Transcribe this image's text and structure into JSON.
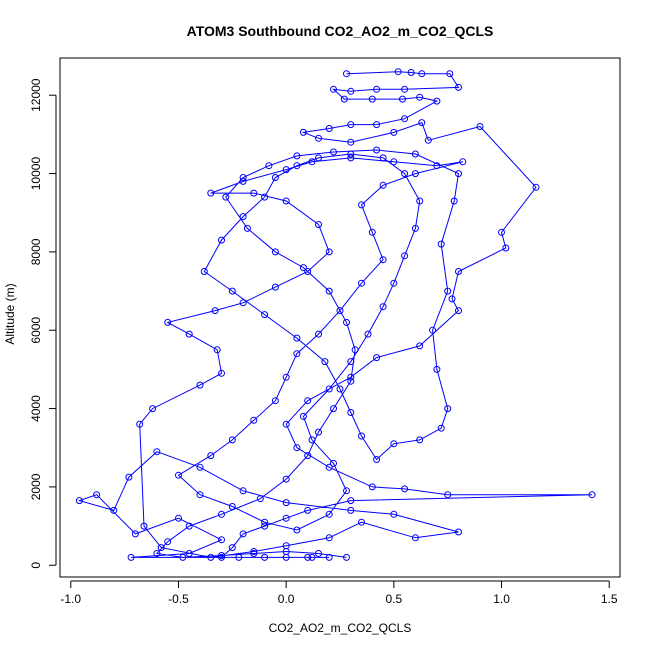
{
  "chart_data": {
    "type": "scatter",
    "title": "ATOM3 Southbound CO2_AO2_m_CO2_QCLS",
    "xlabel": "CO2_AO2_m_CO2_QCLS",
    "ylabel": "Altitude (m)",
    "xlim": [
      -1.05,
      1.55
    ],
    "ylim": [
      -300,
      12950
    ],
    "xticks": [
      -1.0,
      -0.5,
      0.0,
      0.5,
      1.0,
      1.5
    ],
    "xtick_labels": [
      "-1.0",
      "-0.5",
      "0.0",
      "0.5",
      "1.0",
      "1.5"
    ],
    "yticks": [
      0,
      2000,
      4000,
      6000,
      8000,
      10000,
      12000
    ],
    "ytick_labels": [
      "0",
      "2000",
      "4000",
      "6000",
      "8000",
      "10000",
      "12000"
    ],
    "grid": false,
    "point_style": "open-circle",
    "connected": true,
    "series": [
      {
        "color": "#0000ff",
        "points": [
          [
            0.28,
            12550
          ],
          [
            0.52,
            12600
          ],
          [
            0.58,
            12580
          ],
          [
            0.63,
            12550
          ],
          [
            0.76,
            12550
          ],
          [
            0.8,
            12200
          ],
          [
            0.55,
            12150
          ],
          [
            0.42,
            12150
          ],
          [
            0.3,
            12100
          ],
          [
            0.22,
            12150
          ],
          [
            0.27,
            11900
          ],
          [
            0.4,
            11900
          ],
          [
            0.54,
            11900
          ],
          [
            0.62,
            11950
          ],
          [
            0.7,
            11850
          ],
          [
            0.55,
            11400
          ],
          [
            0.42,
            11250
          ],
          [
            0.3,
            11250
          ],
          [
            0.2,
            11150
          ],
          [
            0.08,
            11050
          ],
          [
            0.15,
            10900
          ],
          [
            0.3,
            10800
          ],
          [
            0.5,
            11050
          ],
          [
            0.63,
            11300
          ],
          [
            0.66,
            10850
          ],
          [
            0.9,
            11200
          ],
          [
            1.16,
            9650
          ],
          [
            1.0,
            8500
          ],
          [
            1.02,
            8100
          ],
          [
            0.8,
            7500
          ],
          [
            0.77,
            6800
          ],
          [
            0.8,
            6500
          ],
          [
            0.62,
            5600
          ],
          [
            0.42,
            5300
          ],
          [
            0.3,
            4800
          ],
          [
            0.1,
            4200
          ],
          [
            0.0,
            3600
          ],
          [
            0.05,
            3000
          ],
          [
            0.2,
            2500
          ],
          [
            0.4,
            2000
          ],
          [
            0.55,
            1950
          ],
          [
            0.75,
            1800
          ],
          [
            1.42,
            1800
          ],
          [
            0.3,
            1650
          ],
          [
            0.1,
            1400
          ],
          [
            0.0,
            1200
          ],
          [
            -0.1,
            1000
          ],
          [
            -0.2,
            800
          ],
          [
            -0.25,
            450
          ],
          [
            -0.3,
            200
          ],
          [
            -0.22,
            200
          ],
          [
            -0.1,
            200
          ],
          [
            0.0,
            200
          ],
          [
            0.12,
            200
          ],
          [
            0.2,
            200
          ],
          [
            0.1,
            200
          ],
          [
            -0.72,
            200
          ],
          [
            -0.45,
            300
          ],
          [
            -0.3,
            650
          ],
          [
            -0.5,
            1200
          ],
          [
            -0.7,
            800
          ],
          [
            -0.88,
            1800
          ],
          [
            -0.96,
            1650
          ],
          [
            -0.8,
            1400
          ],
          [
            -0.73,
            2250
          ],
          [
            -0.6,
            2900
          ],
          [
            -0.4,
            2500
          ],
          [
            -0.2,
            1900
          ],
          [
            0.0,
            1600
          ],
          [
            0.3,
            1400
          ],
          [
            0.5,
            1300
          ],
          [
            0.8,
            850
          ],
          [
            0.6,
            700
          ],
          [
            0.35,
            1100
          ],
          [
            0.2,
            700
          ],
          [
            0.0,
            500
          ],
          [
            -0.15,
            350
          ],
          [
            -0.35,
            200
          ],
          [
            -0.58,
            450
          ],
          [
            -0.66,
            1000
          ],
          [
            -0.68,
            3600
          ],
          [
            -0.62,
            4000
          ],
          [
            -0.4,
            4600
          ],
          [
            -0.3,
            4900
          ],
          [
            -0.32,
            5500
          ],
          [
            -0.45,
            5900
          ],
          [
            -0.55,
            6200
          ],
          [
            -0.33,
            6500
          ],
          [
            -0.2,
            6700
          ],
          [
            -0.05,
            7100
          ],
          [
            0.1,
            7500
          ],
          [
            0.2,
            8000
          ],
          [
            0.15,
            8700
          ],
          [
            0.0,
            9300
          ],
          [
            -0.15,
            9500
          ],
          [
            -0.35,
            9500
          ],
          [
            -0.2,
            9800
          ],
          [
            0.0,
            10100
          ],
          [
            0.12,
            10300
          ],
          [
            0.3,
            10400
          ],
          [
            0.5,
            10300
          ],
          [
            0.7,
            10200
          ],
          [
            0.82,
            10300
          ],
          [
            0.6,
            10000
          ],
          [
            0.45,
            9700
          ],
          [
            0.35,
            9200
          ],
          [
            0.4,
            8500
          ],
          [
            0.45,
            7800
          ],
          [
            0.35,
            7200
          ],
          [
            0.25,
            6500
          ],
          [
            0.15,
            5900
          ],
          [
            0.05,
            5400
          ],
          [
            0.0,
            4800
          ],
          [
            -0.05,
            4200
          ],
          [
            -0.15,
            3700
          ],
          [
            -0.25,
            3200
          ],
          [
            -0.35,
            2800
          ],
          [
            -0.5,
            2300
          ],
          [
            -0.4,
            1800
          ],
          [
            -0.25,
            1500
          ],
          [
            -0.1,
            1100
          ],
          [
            0.05,
            900
          ],
          [
            0.2,
            1300
          ],
          [
            0.28,
            1900
          ],
          [
            0.22,
            2600
          ],
          [
            0.12,
            3200
          ],
          [
            0.08,
            3800
          ],
          [
            0.2,
            4500
          ],
          [
            0.3,
            5200
          ],
          [
            0.38,
            5900
          ],
          [
            0.45,
            6600
          ],
          [
            0.5,
            7200
          ],
          [
            0.55,
            7900
          ],
          [
            0.6,
            8600
          ],
          [
            0.62,
            9300
          ],
          [
            0.55,
            10000
          ],
          [
            0.45,
            10400
          ],
          [
            0.3,
            10500
          ],
          [
            0.15,
            10400
          ],
          [
            0.05,
            10200
          ],
          [
            -0.05,
            9900
          ],
          [
            -0.1,
            9400
          ],
          [
            -0.2,
            8900
          ],
          [
            -0.3,
            8300
          ],
          [
            -0.38,
            7500
          ],
          [
            -0.25,
            7000
          ],
          [
            -0.1,
            6400
          ],
          [
            0.05,
            5800
          ],
          [
            0.18,
            5200
          ],
          [
            0.25,
            4500
          ],
          [
            0.3,
            3900
          ],
          [
            0.35,
            3300
          ],
          [
            0.42,
            2700
          ],
          [
            0.5,
            3100
          ],
          [
            0.62,
            3200
          ],
          [
            0.72,
            3500
          ],
          [
            0.75,
            4000
          ],
          [
            0.7,
            5000
          ],
          [
            0.68,
            6000
          ],
          [
            0.75,
            7000
          ],
          [
            0.72,
            8200
          ],
          [
            0.78,
            9300
          ],
          [
            0.8,
            10000
          ],
          [
            0.6,
            10500
          ],
          [
            0.42,
            10600
          ],
          [
            0.22,
            10550
          ],
          [
            0.05,
            10450
          ],
          [
            -0.08,
            10200
          ],
          [
            -0.2,
            9900
          ],
          [
            -0.28,
            9400
          ],
          [
            -0.18,
            8600
          ],
          [
            -0.05,
            8000
          ],
          [
            0.08,
            7600
          ],
          [
            0.2,
            7000
          ],
          [
            0.28,
            6200
          ],
          [
            0.32,
            5500
          ],
          [
            0.3,
            4700
          ],
          [
            0.22,
            4000
          ],
          [
            0.15,
            3400
          ],
          [
            0.1,
            2800
          ],
          [
            0.0,
            2200
          ],
          [
            -0.12,
            1700
          ],
          [
            -0.3,
            1300
          ],
          [
            -0.45,
            1000
          ],
          [
            -0.55,
            600
          ],
          [
            -0.6,
            300
          ],
          [
            -0.48,
            200
          ],
          [
            -0.3,
            250
          ],
          [
            -0.15,
            300
          ],
          [
            0.0,
            350
          ],
          [
            0.15,
            300
          ],
          [
            0.28,
            200
          ]
        ]
      }
    ]
  }
}
